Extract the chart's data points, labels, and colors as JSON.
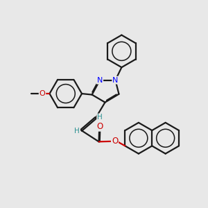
{
  "bg_color": "#e8e8e8",
  "bond_color": "#1a1a1a",
  "N_color": "#0000ff",
  "O_color": "#cc0000",
  "H_color": "#2a9090",
  "line_width": 1.6,
  "dbo": 0.04,
  "figsize": [
    3.0,
    3.0
  ],
  "dpi": 100,
  "xlim": [
    0,
    10
  ],
  "ylim": [
    0,
    10
  ]
}
